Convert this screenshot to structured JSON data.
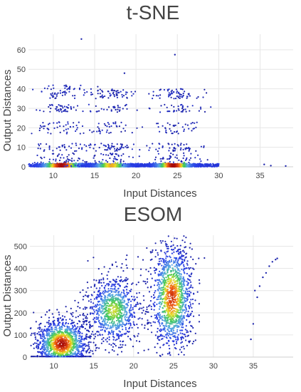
{
  "chart_data": [
    {
      "type": "scatter",
      "title": "t-SNE",
      "xlabel": "Input Distances",
      "ylabel": "Output Distances",
      "xlim": [
        7,
        39
      ],
      "ylim": [
        0,
        68
      ],
      "xticks": [
        10,
        15,
        20,
        25,
        30,
        35
      ],
      "yticks": [
        0,
        10,
        20,
        30,
        40,
        50,
        60
      ],
      "grid": true,
      "color_encoding": "point density (blue = low, green/yellow = medium, red = high)",
      "clusters": [
        {
          "x_center": 11,
          "x_spread": 1.8,
          "y_band": [
            0,
            1.5
          ],
          "density": "very high"
        },
        {
          "x_center": 17,
          "x_spread": 1.6,
          "y_band": [
            0,
            1.5
          ],
          "density": "high"
        },
        {
          "x_center": 24.5,
          "x_spread": 1.6,
          "y_band": [
            0,
            1.5
          ],
          "density": "very high"
        },
        {
          "x_center": 11,
          "x_spread": 2.0,
          "y_band": [
            2,
            42
          ],
          "density": "low"
        },
        {
          "x_center": 17,
          "x_spread": 1.8,
          "y_band": [
            2,
            40
          ],
          "density": "low"
        },
        {
          "x_center": 25,
          "x_spread": 1.8,
          "y_band": [
            2,
            40
          ],
          "density": "low"
        }
      ],
      "outliers": [
        {
          "x": 13.4,
          "y": 65.5
        },
        {
          "x": 18.6,
          "y": 48
        },
        {
          "x": 24.7,
          "y": 57.5
        },
        {
          "x": 35.5,
          "y": 1.2
        },
        {
          "x": 36.3,
          "y": 0.6
        },
        {
          "x": 38.1,
          "y": 0.4
        }
      ]
    },
    {
      "type": "scatter",
      "title": "ESOM",
      "xlabel": "Input Distances",
      "ylabel": "Output Distances",
      "xlim": [
        7,
        40
      ],
      "ylim": [
        0,
        550
      ],
      "xticks": [
        10,
        15,
        20,
        25,
        30,
        35
      ],
      "yticks": [
        0,
        100,
        200,
        300,
        400,
        500
      ],
      "grid": true,
      "color_encoding": "point density (blue = low, green/yellow = medium, red = high)",
      "clusters": [
        {
          "x_center": 11,
          "x_spread": 1.6,
          "y_center": 60,
          "y_spread": 55,
          "density": "very high"
        },
        {
          "x_center": 17.5,
          "x_spread": 1.6,
          "y_center": 210,
          "y_spread": 75,
          "density": "medium"
        },
        {
          "x_center": 24.8,
          "x_spread": 1.3,
          "y_center": 270,
          "y_spread": 120,
          "density": "high"
        }
      ],
      "outliers": [
        {
          "x": 34.7,
          "y": 80
        },
        {
          "x": 35.0,
          "y": 150
        },
        {
          "x": 35.2,
          "y": 300
        },
        {
          "x": 35.5,
          "y": 270
        },
        {
          "x": 35.8,
          "y": 320
        },
        {
          "x": 36.2,
          "y": 360
        },
        {
          "x": 36.6,
          "y": 380
        },
        {
          "x": 37.0,
          "y": 410
        },
        {
          "x": 37.4,
          "y": 430
        },
        {
          "x": 37.8,
          "y": 440
        },
        {
          "x": 38.0,
          "y": 445
        }
      ]
    }
  ]
}
